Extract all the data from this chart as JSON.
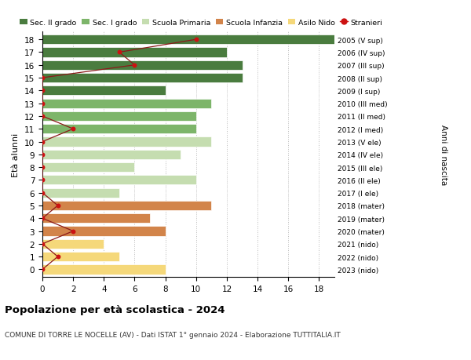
{
  "ages": [
    18,
    17,
    16,
    15,
    14,
    13,
    12,
    11,
    10,
    9,
    8,
    7,
    6,
    5,
    4,
    3,
    2,
    1,
    0
  ],
  "right_labels": [
    "2005 (V sup)",
    "2006 (IV sup)",
    "2007 (III sup)",
    "2008 (II sup)",
    "2009 (I sup)",
    "2010 (III med)",
    "2011 (II med)",
    "2012 (I med)",
    "2013 (V ele)",
    "2014 (IV ele)",
    "2015 (III ele)",
    "2016 (II ele)",
    "2017 (I ele)",
    "2018 (mater)",
    "2019 (mater)",
    "2020 (mater)",
    "2021 (nido)",
    "2022 (nido)",
    "2023 (nido)"
  ],
  "bar_values": [
    19,
    12,
    13,
    13,
    8,
    11,
    10,
    10,
    11,
    9,
    6,
    10,
    5,
    11,
    7,
    8,
    4,
    5,
    8
  ],
  "bar_colors": [
    "#4a7c3f",
    "#4a7c3f",
    "#4a7c3f",
    "#4a7c3f",
    "#4a7c3f",
    "#7db56a",
    "#7db56a",
    "#7db56a",
    "#c5ddb0",
    "#c5ddb0",
    "#c5ddb0",
    "#c5ddb0",
    "#c5ddb0",
    "#d2844a",
    "#d2844a",
    "#d2844a",
    "#f5d87a",
    "#f5d87a",
    "#f5d87a"
  ],
  "stranieri_values": [
    10,
    5,
    6,
    0,
    0,
    0,
    0,
    2,
    0,
    0,
    0,
    0,
    0,
    1,
    0,
    2,
    0,
    1,
    0
  ],
  "legend_labels": [
    "Sec. II grado",
    "Sec. I grado",
    "Scuola Primaria",
    "Scuola Infanzia",
    "Asilo Nido",
    "Stranieri"
  ],
  "legend_colors": [
    "#4a7c3f",
    "#7db56a",
    "#c5ddb0",
    "#d2844a",
    "#f5d87a",
    "#b22222"
  ],
  "ylabel": "Età alunni",
  "right_ylabel": "Anni di nascita",
  "title": "Popolazione per età scolastica - 2024",
  "subtitle": "COMUNE DI TORRE LE NOCELLE (AV) - Dati ISTAT 1° gennaio 2024 - Elaborazione TUTTITALIA.IT",
  "xlim": [
    0,
    19
  ],
  "xticks": [
    0,
    2,
    4,
    6,
    8,
    10,
    12,
    14,
    16,
    18
  ],
  "bg_color": "#ffffff",
  "grid_color": "#bbbbbb"
}
